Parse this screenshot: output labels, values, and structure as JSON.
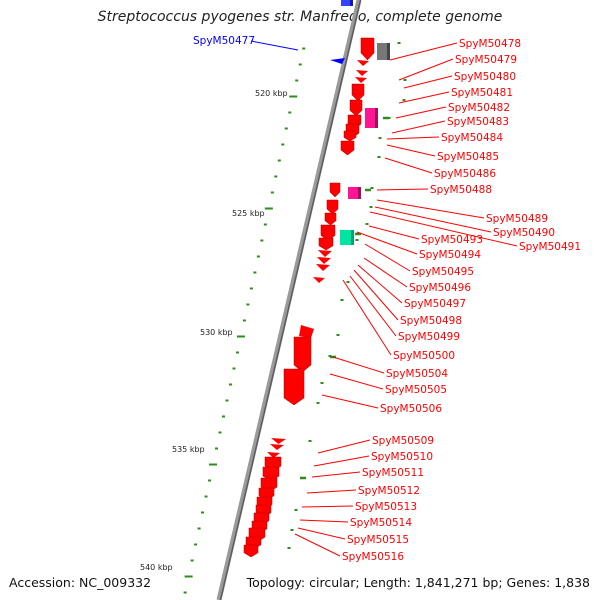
{
  "title": "Streptococcus pyogenes str. Manfredo, complete genome",
  "accession": "Accession: NC_009332",
  "topology": "Topology: circular; Length: 1,841,271 bp; Genes: 1,838",
  "colors": {
    "background": "#ffffff",
    "backbone": "#8c8c8c",
    "tick": "#2e8b1e",
    "gene_red": "#ff0000",
    "gene_magenta": "#ff1493",
    "gene_gray": "#707070",
    "gene_green": "#00e5a0",
    "gene_blue": "#0000ff"
  },
  "scale_labels": [
    "520 kbp",
    "525 kbp",
    "530 kbp",
    "535 kbp",
    "540 kbp"
  ],
  "left_labels": [
    {
      "name": "SpyM50477",
      "color": "blue"
    }
  ],
  "right_labels": [
    {
      "name": "SpyM50478"
    },
    {
      "name": "SpyM50479"
    },
    {
      "name": "SpyM50480"
    },
    {
      "name": "SpyM50481"
    },
    {
      "name": "SpyM50482"
    },
    {
      "name": "SpyM50483"
    },
    {
      "name": "SpyM50484"
    },
    {
      "name": "SpyM50485"
    },
    {
      "name": "SpyM50486"
    },
    {
      "name": "SpyM50488"
    },
    {
      "name": "SpyM50489"
    },
    {
      "name": "SpyM50490"
    },
    {
      "name": "SpyM50491"
    },
    {
      "name": "SpyM50493"
    },
    {
      "name": "SpyM50494"
    },
    {
      "name": "SpyM50495"
    },
    {
      "name": "SpyM50496"
    },
    {
      "name": "SpyM50497"
    },
    {
      "name": "SpyM50498"
    },
    {
      "name": "SpyM50499"
    },
    {
      "name": "SpyM50500"
    },
    {
      "name": "SpyM50504"
    },
    {
      "name": "SpyM50505"
    },
    {
      "name": "SpyM50506"
    },
    {
      "name": "SpyM50509"
    },
    {
      "name": "SpyM50510"
    },
    {
      "name": "SpyM50511"
    },
    {
      "name": "SpyM50512"
    },
    {
      "name": "SpyM50513"
    },
    {
      "name": "SpyM50514"
    },
    {
      "name": "SpyM50515"
    },
    {
      "name": "SpyM50516"
    }
  ]
}
